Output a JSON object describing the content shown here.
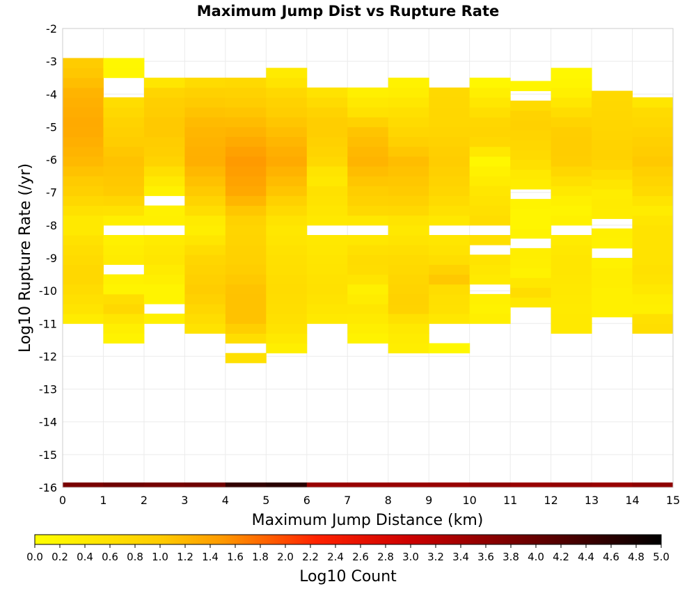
{
  "chart_data": {
    "type": "heatmap",
    "title": "Maximum Jump Dist vs Rupture Rate",
    "xlabel": "Maximum Jump Distance (km)",
    "ylabel": "Log10 Rupture Rate (/yr)",
    "xlim": [
      0,
      15
    ],
    "ylim": [
      -16,
      -2
    ],
    "x_ticks": [
      "0",
      "1",
      "2",
      "3",
      "4",
      "5",
      "6",
      "7",
      "8",
      "9",
      "10",
      "11",
      "12",
      "13",
      "14",
      "15"
    ],
    "y_ticks": [
      "-2",
      "-3",
      "-4",
      "-5",
      "-6",
      "-7",
      "-8",
      "-9",
      "-10",
      "-11",
      "-12",
      "-13",
      "-14",
      "-15",
      "-16"
    ],
    "grid": true,
    "bin_width_x": 1,
    "bin_height_y": 0.3,
    "colorbar": {
      "label": "Log10 Count",
      "min": 0.0,
      "max": 5.0,
      "ticks": [
        "0.0",
        "0.2",
        "0.4",
        "0.6",
        "0.8",
        "1.0",
        "1.2",
        "1.4",
        "1.6",
        "1.8",
        "2.0",
        "2.2",
        "2.4",
        "2.6",
        "2.8",
        "3.0",
        "3.2",
        "3.4",
        "3.6",
        "3.8",
        "4.0",
        "4.2",
        "4.4",
        "4.6",
        "4.8",
        "5.0"
      ],
      "colors": [
        "#ffff00",
        "#ff9900",
        "#ff0000",
        "#800000",
        "#000000"
      ]
    },
    "columns": [
      {
        "x": 0,
        "ylow": -11.0,
        "yhigh": -3.0,
        "gaps": [],
        "anchors": [
          [
            -11.0,
            0.3
          ],
          [
            -10.5,
            0.55
          ],
          [
            -9.5,
            0.8
          ],
          [
            -8.5,
            0.6
          ],
          [
            -8.0,
            0.35
          ],
          [
            -7.0,
            0.9
          ],
          [
            -6.0,
            1.2
          ],
          [
            -5.0,
            1.35
          ],
          [
            -4.0,
            1.25
          ],
          [
            -3.2,
            1.0
          ]
        ]
      },
      {
        "x": 1,
        "ylow": -11.6,
        "yhigh": -3.0,
        "gaps": [
          [
            -9.6,
            -9.3
          ],
          [
            -8.3,
            -8.1
          ],
          [
            -4.0,
            -3.6
          ]
        ],
        "anchors": [
          [
            -11.6,
            0.2
          ],
          [
            -11.0,
            0.35
          ],
          [
            -10.4,
            0.9
          ],
          [
            -10.0,
            0.2
          ],
          [
            -9.0,
            0.4
          ],
          [
            -8.5,
            0.3
          ],
          [
            -8.0,
            0.2
          ],
          [
            -7.0,
            1.0
          ],
          [
            -6.0,
            1.1
          ],
          [
            -5.5,
            1.0
          ],
          [
            -5.0,
            0.9
          ],
          [
            -4.3,
            0.7
          ],
          [
            -3.3,
            0.15
          ]
        ]
      },
      {
        "x": 2,
        "ylow": -11.0,
        "yhigh": -3.6,
        "gaps": [
          [
            -10.8,
            -10.5
          ],
          [
            -8.3,
            -8.1
          ],
          [
            -7.3,
            -7.0
          ]
        ],
        "anchors": [
          [
            -11.0,
            0.3
          ],
          [
            -10.0,
            0.2
          ],
          [
            -9.0,
            0.5
          ],
          [
            -8.0,
            0.3
          ],
          [
            -7.0,
            0.25
          ],
          [
            -6.5,
            0.5
          ],
          [
            -6.0,
            0.9
          ],
          [
            -5.0,
            1.05
          ],
          [
            -4.0,
            0.9
          ],
          [
            -3.7,
            0.5
          ]
        ]
      },
      {
        "x": 3,
        "ylow": -11.3,
        "yhigh": -3.6,
        "gaps": [],
        "anchors": [
          [
            -11.3,
            0.5
          ],
          [
            -10.5,
            0.8
          ],
          [
            -10.0,
            1.0
          ],
          [
            -9.0,
            0.8
          ],
          [
            -8.0,
            0.25
          ],
          [
            -7.5,
            0.7
          ],
          [
            -7.0,
            1.0
          ],
          [
            -6.0,
            1.3
          ],
          [
            -5.0,
            1.2
          ],
          [
            -4.0,
            0.95
          ],
          [
            -3.7,
            0.7
          ]
        ]
      },
      {
        "x": 4,
        "ylow": -12.2,
        "yhigh": -3.6,
        "gaps": [
          [
            -11.8,
            -11.6
          ]
        ],
        "anchors": [
          [
            -12.2,
            0.6
          ],
          [
            -11.5,
            0.6
          ],
          [
            -11.0,
            1.1
          ],
          [
            -10.0,
            1.1
          ],
          [
            -9.0,
            0.9
          ],
          [
            -8.0,
            0.8
          ],
          [
            -7.0,
            1.35
          ],
          [
            -6.0,
            1.5
          ],
          [
            -5.5,
            1.35
          ],
          [
            -5.0,
            1.2
          ],
          [
            -4.0,
            0.9
          ],
          [
            -3.7,
            0.75
          ]
        ]
      },
      {
        "x": 5,
        "ylow": -11.9,
        "yhigh": -3.3,
        "gaps": [],
        "anchors": [
          [
            -11.9,
            0.25
          ],
          [
            -11.0,
            0.6
          ],
          [
            -10.0,
            0.7
          ],
          [
            -9.0,
            0.6
          ],
          [
            -8.0,
            0.45
          ],
          [
            -7.0,
            1.05
          ],
          [
            -6.0,
            1.35
          ],
          [
            -5.0,
            1.1
          ],
          [
            -4.0,
            0.8
          ],
          [
            -3.5,
            0.4
          ]
        ]
      },
      {
        "x": 6,
        "ylow": -11.0,
        "yhigh": -3.9,
        "gaps": [
          [
            -8.4,
            -8.1
          ]
        ],
        "anchors": [
          [
            -11.0,
            0.4
          ],
          [
            -10.0,
            0.6
          ],
          [
            -9.0,
            0.5
          ],
          [
            -8.0,
            0.4
          ],
          [
            -7.0,
            0.6
          ],
          [
            -6.5,
            0.4
          ],
          [
            -6.0,
            0.8
          ],
          [
            -5.0,
            1.0
          ],
          [
            -4.5,
            0.85
          ],
          [
            -4.0,
            0.55
          ]
        ]
      },
      {
        "x": 7,
        "ylow": -11.6,
        "yhigh": -3.9,
        "gaps": [
          [
            -8.4,
            -8.1
          ]
        ],
        "anchors": [
          [
            -11.6,
            0.2
          ],
          [
            -10.5,
            0.5
          ],
          [
            -10.0,
            0.25
          ],
          [
            -9.5,
            0.65
          ],
          [
            -9.0,
            0.7
          ],
          [
            -8.0,
            0.3
          ],
          [
            -7.5,
            0.8
          ],
          [
            -7.0,
            0.95
          ],
          [
            -6.0,
            1.25
          ],
          [
            -5.0,
            1.05
          ],
          [
            -4.6,
            0.6
          ],
          [
            -4.0,
            0.3
          ]
        ]
      },
      {
        "x": 8,
        "ylow": -11.9,
        "yhigh": -3.6,
        "gaps": [],
        "anchors": [
          [
            -11.9,
            0.3
          ],
          [
            -11.0,
            0.45
          ],
          [
            -10.5,
            0.9
          ],
          [
            -10.0,
            0.85
          ],
          [
            -9.0,
            0.7
          ],
          [
            -8.0,
            0.4
          ],
          [
            -7.5,
            0.8
          ],
          [
            -7.0,
            1.0
          ],
          [
            -6.0,
            1.15
          ],
          [
            -5.0,
            0.75
          ],
          [
            -4.5,
            0.6
          ],
          [
            -3.8,
            0.25
          ]
        ]
      },
      {
        "x": 9,
        "ylow": -11.9,
        "yhigh": -3.9,
        "gaps": [
          [
            -11.6,
            -10.9
          ],
          [
            -8.4,
            -8.1
          ]
        ],
        "anchors": [
          [
            -11.9,
            0.1
          ],
          [
            -10.5,
            0.6
          ],
          [
            -10.0,
            0.6
          ],
          [
            -9.6,
            1.1
          ],
          [
            -9.0,
            0.6
          ],
          [
            -8.0,
            0.4
          ],
          [
            -7.5,
            0.6
          ],
          [
            -7.0,
            0.8
          ],
          [
            -6.0,
            1.0
          ],
          [
            -5.0,
            0.8
          ],
          [
            -4.0,
            0.75
          ]
        ]
      },
      {
        "x": 10,
        "ylow": -11.0,
        "yhigh": -3.6,
        "gaps": [
          [
            -10.2,
            -9.9
          ],
          [
            -9.0,
            -8.7
          ],
          [
            -8.4,
            -8.1
          ]
        ],
        "anchors": [
          [
            -11.0,
            0.35
          ],
          [
            -10.5,
            0.25
          ],
          [
            -9.5,
            0.45
          ],
          [
            -8.0,
            0.7
          ],
          [
            -7.0,
            0.5
          ],
          [
            -6.6,
            0.35
          ],
          [
            -6.0,
            0.15
          ],
          [
            -5.5,
            0.75
          ],
          [
            -5.0,
            0.85
          ],
          [
            -4.0,
            0.35
          ],
          [
            -3.7,
            0.15
          ]
        ]
      },
      {
        "x": 11,
        "ylow": -10.5,
        "yhigh": -3.6,
        "gaps": [
          [
            -8.7,
            -8.4
          ],
          [
            -7.2,
            -6.9
          ],
          [
            -4.2,
            -4.0
          ]
        ],
        "anchors": [
          [
            -10.5,
            0.35
          ],
          [
            -10.0,
            0.7
          ],
          [
            -9.5,
            0.25
          ],
          [
            -9.0,
            0.35
          ],
          [
            -8.0,
            0.2
          ],
          [
            -7.5,
            0.2
          ],
          [
            -6.5,
            0.4
          ],
          [
            -6.0,
            0.7
          ],
          [
            -5.0,
            0.9
          ],
          [
            -4.5,
            0.85
          ],
          [
            -3.8,
            0.2
          ]
        ]
      },
      {
        "x": 12,
        "ylow": -11.3,
        "yhigh": -3.3,
        "gaps": [
          [
            -8.4,
            -8.1
          ]
        ],
        "anchors": [
          [
            -11.3,
            0.45
          ],
          [
            -10.5,
            0.4
          ],
          [
            -10.0,
            0.45
          ],
          [
            -9.0,
            0.5
          ],
          [
            -8.0,
            0.3
          ],
          [
            -7.5,
            0.2
          ],
          [
            -7.0,
            0.4
          ],
          [
            -6.0,
            1.0
          ],
          [
            -5.0,
            0.95
          ],
          [
            -4.0,
            0.3
          ],
          [
            -3.5,
            0.15
          ]
        ]
      },
      {
        "x": 13,
        "ylow": -10.8,
        "yhigh": -3.9,
        "gaps": [
          [
            -9.0,
            -8.7
          ],
          [
            -8.1,
            -7.8
          ]
        ],
        "anchors": [
          [
            -10.8,
            0.3
          ],
          [
            -10.0,
            0.3
          ],
          [
            -9.5,
            0.35
          ],
          [
            -9.0,
            0.25
          ],
          [
            -8.0,
            0.3
          ],
          [
            -7.5,
            0.4
          ],
          [
            -7.0,
            0.35
          ],
          [
            -6.0,
            0.9
          ],
          [
            -5.0,
            0.8
          ],
          [
            -4.0,
            0.75
          ]
        ]
      },
      {
        "x": 14,
        "ylow": -11.3,
        "yhigh": -4.2,
        "gaps": [],
        "anchors": [
          [
            -11.3,
            0.55
          ],
          [
            -11.0,
            0.75
          ],
          [
            -10.5,
            0.25
          ],
          [
            -9.5,
            0.6
          ],
          [
            -9.0,
            0.55
          ],
          [
            -8.0,
            0.55
          ],
          [
            -7.5,
            0.35
          ],
          [
            -7.0,
            0.7
          ],
          [
            -6.0,
            1.05
          ],
          [
            -5.0,
            0.8
          ],
          [
            -4.5,
            0.7
          ],
          [
            -4.3,
            0.5
          ]
        ]
      }
    ],
    "bottom_strip": {
      "y": -16,
      "values": [
        3.8,
        3.9,
        3.85,
        3.9,
        4.5,
        4.6,
        3.5,
        3.5,
        3.5,
        3.5,
        3.6,
        3.5,
        3.55,
        3.5,
        3.6
      ]
    }
  }
}
